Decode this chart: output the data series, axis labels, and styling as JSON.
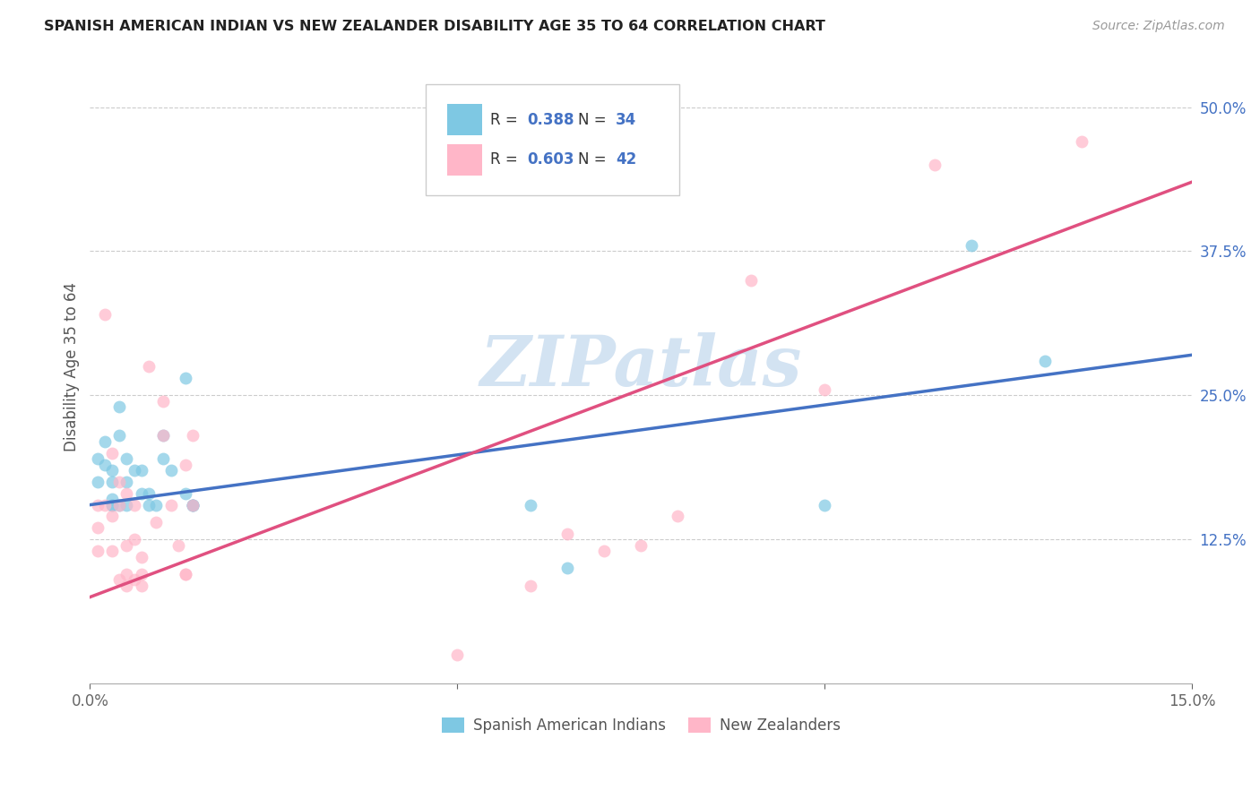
{
  "title": "SPANISH AMERICAN INDIAN VS NEW ZEALANDER DISABILITY AGE 35 TO 64 CORRELATION CHART",
  "source": "Source: ZipAtlas.com",
  "ylabel": "Disability Age 35 to 64",
  "xlim": [
    0.0,
    0.15
  ],
  "ylim": [
    0.0,
    0.55
  ],
  "xticks": [
    0.0,
    0.05,
    0.1,
    0.15
  ],
  "xticklabels": [
    "0.0%",
    "",
    "",
    "15.0%"
  ],
  "yticks_right": [
    0.125,
    0.25,
    0.375,
    0.5
  ],
  "ytick_labels_right": [
    "12.5%",
    "25.0%",
    "37.5%",
    "50.0%"
  ],
  "blue_color": "#7ec8e3",
  "pink_color": "#ffb6c8",
  "blue_line_color": "#4472c4",
  "pink_line_color": "#e05080",
  "watermark": "ZIPatlas",
  "blue_trendline_x": [
    0.0,
    0.15
  ],
  "blue_trendline_y": [
    0.155,
    0.285
  ],
  "pink_trendline_x": [
    0.0,
    0.15
  ],
  "pink_trendline_y": [
    0.075,
    0.435
  ],
  "blue_x": [
    0.001,
    0.001,
    0.002,
    0.002,
    0.003,
    0.003,
    0.003,
    0.003,
    0.004,
    0.004,
    0.005,
    0.005,
    0.005,
    0.006,
    0.007,
    0.007,
    0.008,
    0.009,
    0.01,
    0.011,
    0.013,
    0.013,
    0.014,
    0.014,
    0.014,
    0.06,
    0.065,
    0.1,
    0.12,
    0.13,
    0.003,
    0.004,
    0.008,
    0.01
  ],
  "blue_y": [
    0.195,
    0.175,
    0.21,
    0.19,
    0.185,
    0.16,
    0.175,
    0.155,
    0.215,
    0.24,
    0.195,
    0.175,
    0.155,
    0.185,
    0.185,
    0.165,
    0.165,
    0.155,
    0.195,
    0.185,
    0.165,
    0.265,
    0.155,
    0.155,
    0.155,
    0.155,
    0.1,
    0.155,
    0.38,
    0.28,
    0.155,
    0.155,
    0.155,
    0.215
  ],
  "pink_x": [
    0.001,
    0.001,
    0.001,
    0.002,
    0.003,
    0.003,
    0.004,
    0.004,
    0.005,
    0.005,
    0.005,
    0.006,
    0.006,
    0.007,
    0.007,
    0.008,
    0.009,
    0.01,
    0.01,
    0.011,
    0.012,
    0.013,
    0.013,
    0.014,
    0.014,
    0.05,
    0.06,
    0.065,
    0.07,
    0.075,
    0.08,
    0.09,
    0.1,
    0.115,
    0.135,
    0.002,
    0.003,
    0.004,
    0.005,
    0.006,
    0.007,
    0.013
  ],
  "pink_y": [
    0.155,
    0.135,
    0.115,
    0.155,
    0.145,
    0.115,
    0.155,
    0.09,
    0.165,
    0.12,
    0.095,
    0.155,
    0.125,
    0.11,
    0.095,
    0.275,
    0.14,
    0.245,
    0.215,
    0.155,
    0.12,
    0.19,
    0.095,
    0.215,
    0.155,
    0.025,
    0.085,
    0.13,
    0.115,
    0.12,
    0.145,
    0.35,
    0.255,
    0.45,
    0.47,
    0.32,
    0.2,
    0.175,
    0.085,
    0.09,
    0.085,
    0.095
  ]
}
